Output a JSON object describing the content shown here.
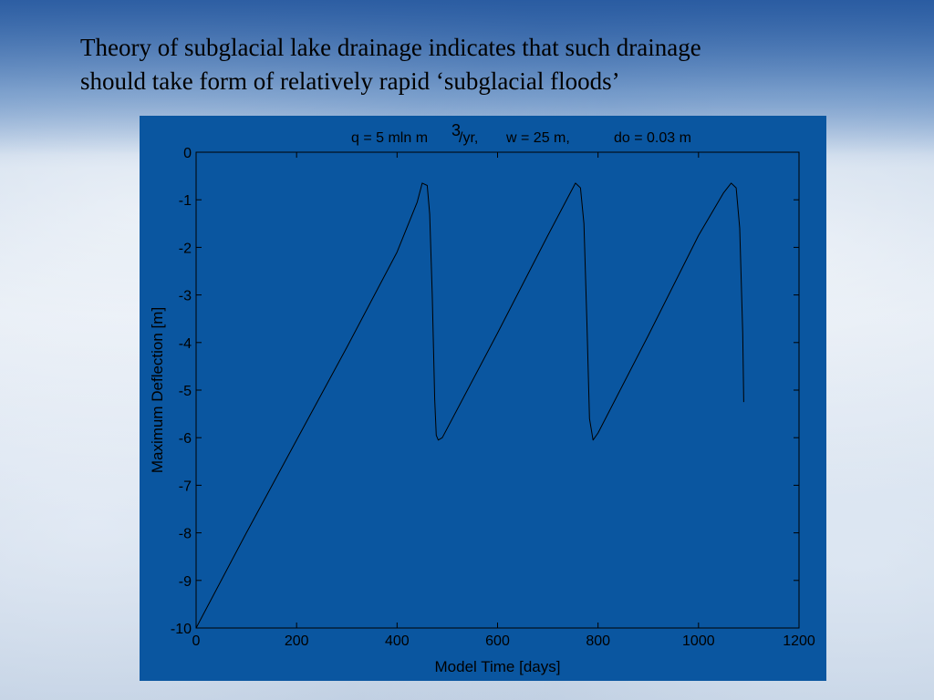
{
  "slide": {
    "title_lines": [
      "Theory of subglacial lake drainage indicates that such drainage",
      "should take form of relatively rapid ‘subglacial floods’"
    ]
  },
  "colors": {
    "panel_background": "#0a56a0",
    "axes_color": "#000000",
    "line_color": "#000000"
  },
  "chart_data": {
    "type": "line",
    "title_parts": {
      "q": "q = 5 mln m",
      "q_sup": "3",
      "q_unit": "/yr,",
      "w": "w = 25 m,",
      "do": "do = 0.03 m"
    },
    "xlabel": "Model Time [days]",
    "ylabel": "Maximum Deflection [m]",
    "xlim": [
      0,
      1200
    ],
    "ylim": [
      -10,
      0
    ],
    "xticks": [
      0,
      200,
      400,
      600,
      800,
      1000,
      1200
    ],
    "yticks": [
      0,
      -1,
      -2,
      -3,
      -4,
      -5,
      -6,
      -7,
      -8,
      -9,
      -10
    ],
    "grid": false,
    "series": [
      {
        "x": [
          0,
          100,
          200,
          300,
          400,
          440,
          450,
          460,
          465,
          470,
          475,
          478,
          482,
          490,
          500,
          600,
          700,
          740,
          755,
          765,
          772,
          778,
          783,
          790,
          800,
          900,
          1000,
          1050,
          1065,
          1075,
          1082,
          1088,
          1090
        ],
        "y": [
          -10,
          -8.0,
          -6.05,
          -4.1,
          -2.1,
          -1.05,
          -0.65,
          -0.7,
          -1.3,
          -3.0,
          -5.2,
          -5.95,
          -6.05,
          -6.0,
          -5.8,
          -3.8,
          -1.75,
          -0.95,
          -0.65,
          -0.75,
          -1.5,
          -3.6,
          -5.6,
          -6.05,
          -5.9,
          -3.85,
          -1.75,
          -0.85,
          -0.65,
          -0.75,
          -1.6,
          -3.8,
          -5.25
        ]
      }
    ]
  }
}
